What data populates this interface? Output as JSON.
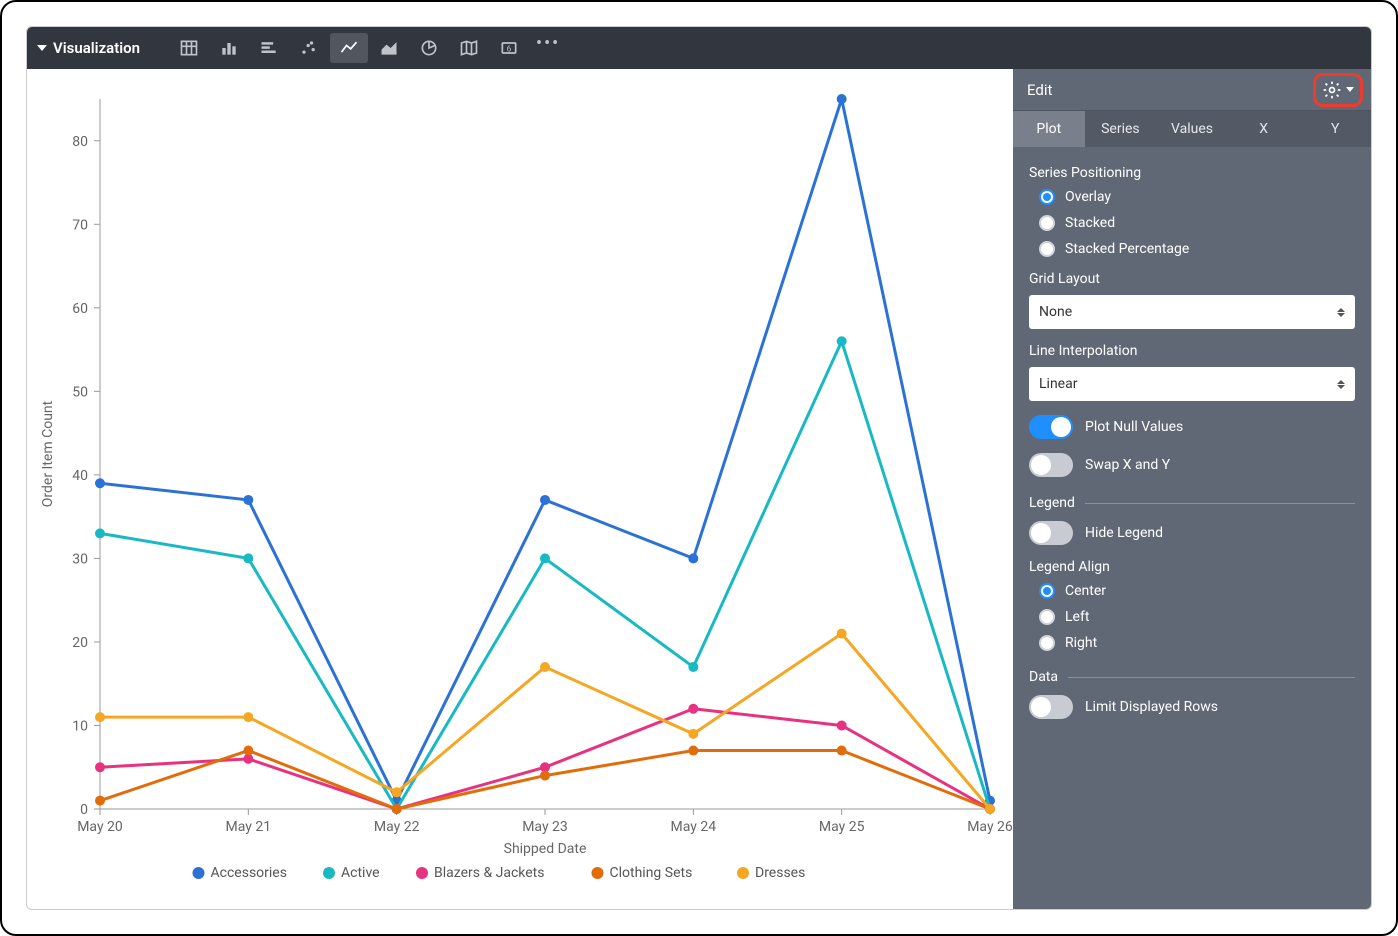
{
  "toolbar": {
    "title": "Visualization",
    "icons": [
      "table",
      "column",
      "bar",
      "scatter",
      "line",
      "area",
      "pie",
      "map",
      "single",
      "more"
    ],
    "active_icon": "line"
  },
  "side": {
    "title": "Edit",
    "tabs": [
      "Plot",
      "Series",
      "Values",
      "X",
      "Y"
    ],
    "active_tab": "Plot",
    "series_positioning_label": "Series Positioning",
    "series_positioning_options": [
      "Overlay",
      "Stacked",
      "Stacked Percentage"
    ],
    "series_positioning_value": "Overlay",
    "grid_layout_label": "Grid Layout",
    "grid_layout_value": "None",
    "line_interp_label": "Line Interpolation",
    "line_interp_value": "Linear",
    "plot_null_label": "Plot Null Values",
    "plot_null_on": true,
    "swap_xy_label": "Swap X and Y",
    "swap_xy_on": false,
    "legend_label": "Legend",
    "hide_legend_label": "Hide Legend",
    "hide_legend_on": false,
    "legend_align_label": "Legend Align",
    "legend_align_options": [
      "Center",
      "Left",
      "Right"
    ],
    "legend_align_value": "Center",
    "data_label": "Data",
    "limit_rows_label": "Limit Displayed Rows",
    "limit_rows_on": false
  },
  "chart": {
    "type": "line",
    "xlabel": "Shipped Date",
    "ylabel": "Order Item Count",
    "categories": [
      "May 20",
      "May 21",
      "May 22",
      "May 23",
      "May 24",
      "May 25",
      "May 26"
    ],
    "ylim": [
      0,
      85
    ],
    "yticks": [
      0,
      10,
      20,
      30,
      40,
      50,
      60,
      70,
      80
    ],
    "series": [
      {
        "name": "Accessories",
        "color": "#2b71d6",
        "values": [
          39,
          37,
          1,
          37,
          30,
          85,
          1
        ]
      },
      {
        "name": "Active",
        "color": "#19b9c3",
        "values": [
          33,
          30,
          0,
          30,
          17,
          56,
          0
        ]
      },
      {
        "name": "Blazers & Jackets",
        "color": "#e8317f",
        "values": [
          5,
          6,
          0,
          5,
          12,
          10,
          0
        ]
      },
      {
        "name": "Clothing Sets",
        "color": "#e36c0a",
        "values": [
          1,
          7,
          0,
          4,
          7,
          7,
          0
        ]
      },
      {
        "name": "Dresses",
        "color": "#f5a623",
        "values": [
          11,
          11,
          2,
          17,
          9,
          21,
          0
        ]
      }
    ],
    "background_color": "#ffffff",
    "axis_color": "#999999",
    "tick_color": "#999999",
    "label_color": "#666666",
    "point_radius": 5,
    "line_width": 3
  }
}
